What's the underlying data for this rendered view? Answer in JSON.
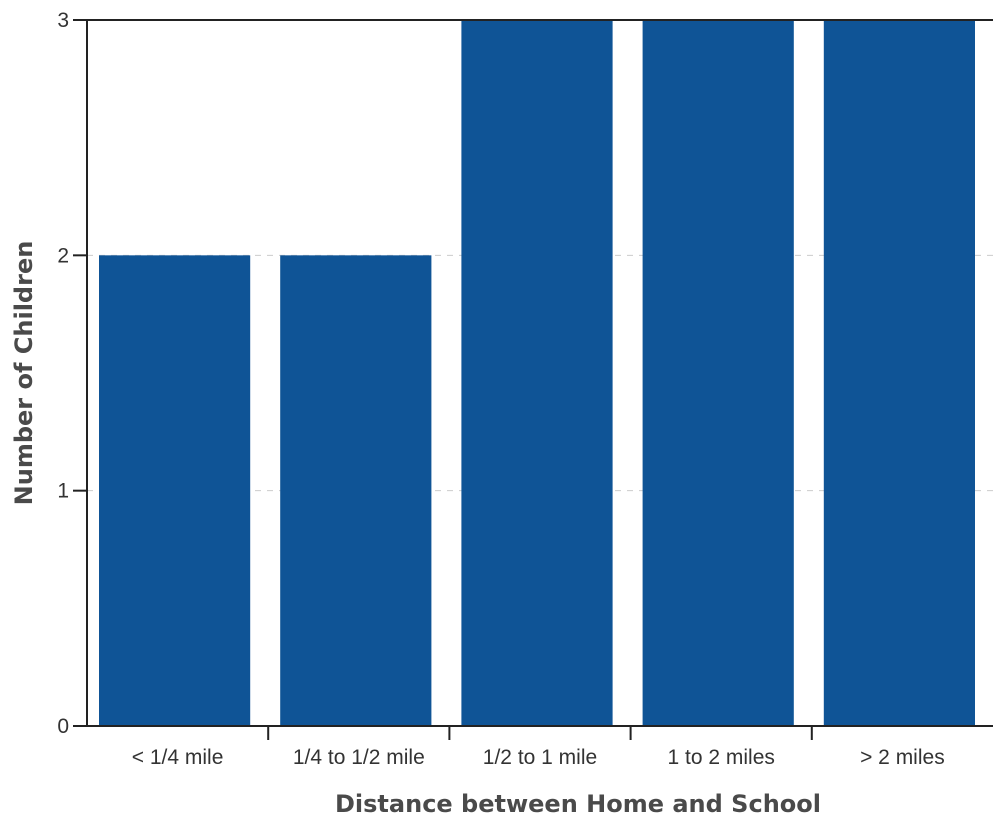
{
  "chart_data": {
    "type": "bar",
    "categories": [
      "< 1/4 mile",
      "1/4 to 1/2 mile",
      "1/2 to 1 mile",
      "1 to 2 miles",
      "> 2 miles"
    ],
    "values": [
      2,
      2,
      3,
      3,
      3
    ],
    "xlabel": "Distance between Home and School",
    "ylabel": "Number of Children",
    "ylim": [
      0,
      3
    ],
    "yticks": [
      0,
      1,
      2,
      3
    ],
    "grid": true,
    "bar_color": "#0f5496"
  }
}
